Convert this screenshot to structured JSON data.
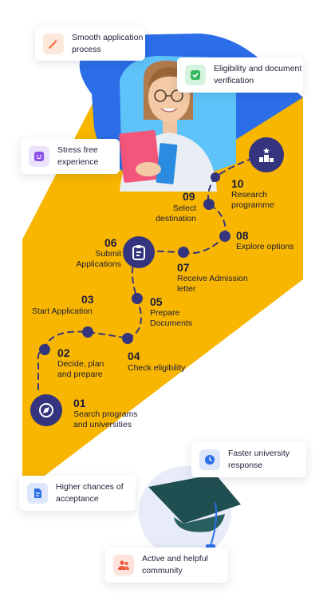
{
  "cards": {
    "smooth": "Smooth application process",
    "eligibility": "Eligibility and document verification",
    "stress": "Stress free experience",
    "faster": "Faster university response",
    "higher": "Higher chances of acceptance",
    "community": "Active and helpful community"
  },
  "steps": [
    {
      "num": "01",
      "label": "Search programs and universities"
    },
    {
      "num": "02",
      "label": "Decide, plan and prepare"
    },
    {
      "num": "03",
      "label": "Start Application"
    },
    {
      "num": "04",
      "label": "Check eligibility"
    },
    {
      "num": "05",
      "label": "Prepare Documents"
    },
    {
      "num": "06",
      "label": "Submit Applications"
    },
    {
      "num": "07",
      "label": "Receive Admission letter"
    },
    {
      "num": "08",
      "label": "Explore options"
    },
    {
      "num": "09",
      "label": "Select destination"
    },
    {
      "num": "10",
      "label": "Research programme"
    }
  ],
  "colors": {
    "navy": "#35357f",
    "yellow": "#f8b600",
    "blue": "#2b6ee8",
    "sky": "#5ec3f8",
    "cap": "#1f4f50"
  },
  "icons": [
    "wand-icon",
    "check-icon",
    "smile-icon",
    "compass-icon",
    "clipboard-icon",
    "podium-icon",
    "clock-icon",
    "document-icon",
    "people-icon",
    "graduation-cap-icon"
  ]
}
